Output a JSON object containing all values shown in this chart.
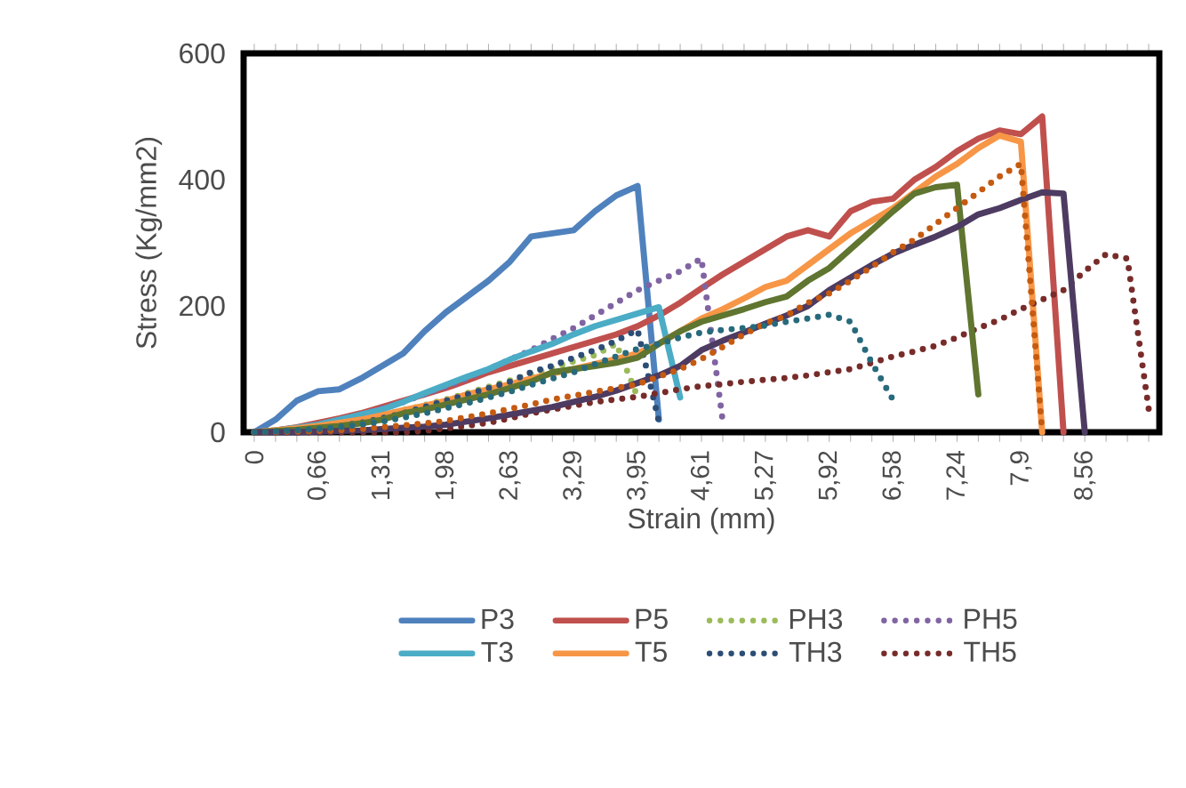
{
  "chart_data": {
    "type": "line",
    "xlabel": "Strain (mm)",
    "ylabel": "Stress  (Kg/mm2)",
    "categories": [
      "0",
      null,
      null,
      "0,66",
      null,
      null,
      "1,31",
      null,
      null,
      "1,98",
      null,
      null,
      "2,63",
      null,
      null,
      "3,29",
      null,
      null,
      "3,95",
      null,
      null,
      "4,61",
      null,
      null,
      "5,27",
      null,
      null,
      "5,92",
      null,
      null,
      "6,58",
      null,
      null,
      "7,24",
      null,
      null,
      "7,9",
      null,
      null,
      "8,56",
      null,
      null,
      null
    ],
    "ylim": [
      0,
      600
    ],
    "yticks": [
      0,
      200,
      400,
      600
    ],
    "grid": false,
    "legend": "bottom",
    "series": [
      {
        "name": "P3",
        "color": "#4f81bd",
        "line_style": "solid",
        "values": [
          0,
          20,
          50,
          65,
          68,
          85,
          105,
          125,
          160,
          190,
          215,
          240,
          270,
          310,
          315,
          320,
          350,
          375,
          390,
          20,
          null,
          null,
          null,
          null,
          null,
          null,
          null,
          null,
          null,
          null,
          null,
          null,
          null,
          null,
          null,
          null,
          null,
          null,
          null,
          null,
          null,
          null,
          null
        ]
      },
      {
        "name": "P5",
        "color": "#c0504d",
        "line_style": "solid",
        "values": [
          0,
          3,
          8,
          15,
          22,
          30,
          40,
          50,
          60,
          70,
          82,
          95,
          105,
          115,
          125,
          135,
          145,
          155,
          168,
          185,
          205,
          228,
          250,
          270,
          290,
          310,
          320,
          310,
          350,
          365,
          370,
          400,
          420,
          445,
          465,
          478,
          472,
          500,
          0,
          null,
          null,
          null,
          null
        ]
      },
      {
        "name": "PH3",
        "color": "#9bbb59",
        "line_style": "dotted",
        "values": [
          0,
          2,
          5,
          9,
          14,
          20,
          27,
          35,
          43,
          52,
          62,
          72,
          82,
          92,
          102,
          112,
          122,
          140,
          56,
          null,
          null,
          null,
          null,
          null,
          null,
          null,
          null,
          null,
          null,
          null,
          null,
          null,
          null,
          null,
          null,
          null,
          null,
          null,
          null,
          null,
          null,
          null,
          null
        ]
      },
      {
        "name": "PH5",
        "color": "#8064a2",
        "line_style": "dotted",
        "values": [
          0,
          2,
          5,
          10,
          18,
          28,
          38,
          48,
          60,
          72,
          85,
          100,
          115,
          130,
          148,
          165,
          185,
          205,
          225,
          240,
          255,
          275,
          17,
          null,
          null,
          null,
          null,
          null,
          null,
          null,
          null,
          null,
          null,
          null,
          null,
          null,
          null,
          null,
          null,
          null,
          null,
          null,
          null
        ]
      },
      {
        "name": "T3",
        "color": "#4bacc6",
        "line_style": "solid",
        "values": [
          0,
          3,
          7,
          12,
          20,
          28,
          36,
          48,
          62,
          75,
          88,
          100,
          115,
          128,
          140,
          155,
          168,
          178,
          188,
          198,
          55,
          null,
          null,
          null,
          null,
          null,
          null,
          null,
          null,
          null,
          null,
          null,
          null,
          null,
          null,
          null,
          null,
          null,
          null,
          null,
          null,
          null,
          null
        ]
      },
      {
        "name": "T5",
        "color": "#f79646",
        "line_style": "solid",
        "values": [
          0,
          3,
          6,
          10,
          15,
          20,
          27,
          35,
          42,
          50,
          60,
          68,
          76,
          85,
          93,
          100,
          108,
          116,
          125,
          140,
          160,
          180,
          195,
          212,
          230,
          240,
          265,
          290,
          315,
          335,
          355,
          380,
          405,
          425,
          450,
          470,
          460,
          0,
          null,
          null,
          null,
          null,
          null
        ]
      },
      {
        "name": "TH3",
        "color": "#2c4d75",
        "line_style": "dotted",
        "values": [
          0,
          1,
          3,
          6,
          10,
          15,
          22,
          30,
          40,
          50,
          60,
          70,
          80,
          95,
          105,
          118,
          130,
          145,
          162,
          17,
          null,
          null,
          null,
          null,
          null,
          null,
          null,
          null,
          null,
          null,
          null,
          null,
          null,
          null,
          null,
          null,
          null,
          null,
          null,
          null,
          null,
          null,
          null
        ]
      },
      {
        "name": "TH5",
        "color": "#772c2a",
        "line_style": "dotted",
        "values": [
          0,
          0,
          0,
          0,
          0,
          0,
          0,
          0,
          2,
          6,
          10,
          15,
          22,
          30,
          36,
          42,
          48,
          52,
          56,
          62,
          68,
          73,
          76,
          80,
          83,
          86,
          90,
          95,
          100,
          110,
          120,
          128,
          137,
          150,
          165,
          178,
          195,
          210,
          225,
          255,
          282,
          275,
          37
        ]
      },
      {
        "color": "#5f7530",
        "line_style": "solid",
        "values": [
          0,
          2,
          4,
          7,
          10,
          14,
          20,
          30,
          36,
          44,
          52,
          60,
          70,
          80,
          95,
          100,
          105,
          110,
          118,
          140,
          160,
          175,
          185,
          195,
          206,
          215,
          240,
          260,
          290,
          320,
          350,
          378,
          388,
          392,
          60,
          null,
          null,
          null,
          null,
          null,
          null,
          null,
          null
        ]
      },
      {
        "color": "#4d3b62",
        "line_style": "solid",
        "values": [
          0,
          0,
          0,
          1,
          2,
          3,
          5,
          7,
          9,
          12,
          17,
          22,
          28,
          34,
          40,
          48,
          56,
          66,
          78,
          90,
          105,
          130,
          145,
          158,
          172,
          185,
          200,
          225,
          245,
          265,
          283,
          297,
          310,
          325,
          345,
          355,
          368,
          380,
          378,
          0,
          null,
          null,
          null
        ]
      },
      {
        "color": "#c55a11",
        "line_style": "dotted",
        "values": [
          0,
          0,
          1,
          2,
          3,
          5,
          8,
          11,
          14,
          18,
          24,
          30,
          37,
          44,
          52,
          58,
          64,
          70,
          76,
          88,
          100,
          116,
          135,
          155,
          172,
          185,
          205,
          220,
          240,
          262,
          285,
          305,
          330,
          355,
          380,
          405,
          425,
          0,
          null,
          null,
          null,
          null,
          null
        ]
      },
      {
        "color": "#276a7c",
        "line_style": "dotted",
        "values": [
          0,
          1,
          3,
          5,
          8,
          12,
          17,
          23,
          30,
          38,
          46,
          55,
          64,
          75,
          85,
          95,
          108,
          120,
          132,
          140,
          150,
          158,
          162,
          165,
          169,
          175,
          180,
          186,
          175,
          110,
          51,
          null,
          null,
          null,
          null,
          null,
          null,
          null,
          null,
          null,
          null,
          null,
          null
        ]
      }
    ]
  }
}
